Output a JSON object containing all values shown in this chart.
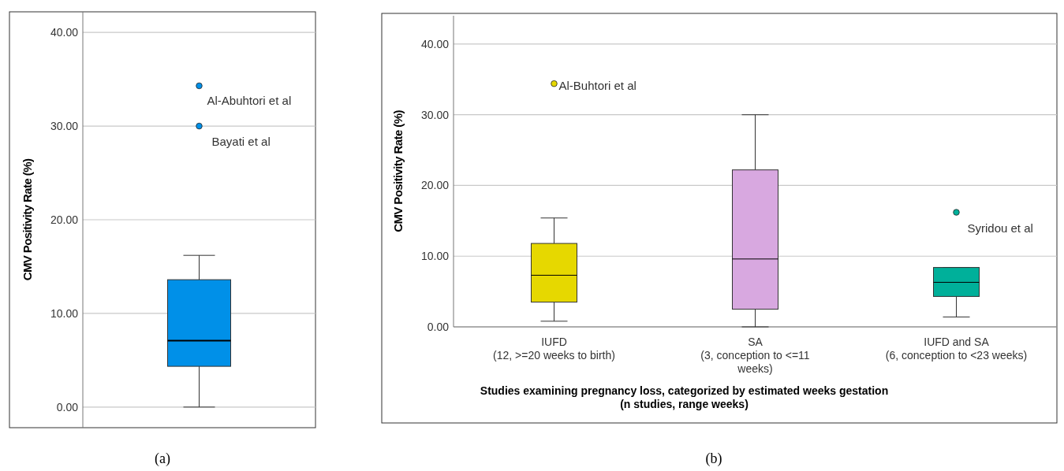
{
  "chart_data": [
    {
      "type": "box",
      "ylabel": "CMV Positivity Rate (%)",
      "categories": [
        null
      ],
      "boxes": [
        {
          "low": 0,
          "q1": 4.35,
          "median": 7.1,
          "q3": 13.6,
          "high": 16.2,
          "outliers": [
            34.3,
            30.0
          ]
        }
      ],
      "colors": [
        "#0090e8"
      ],
      "ylim": [
        -2.2,
        42.2
      ],
      "yticks": [
        {
          "value": 0,
          "label": "0.00"
        },
        {
          "value": 10,
          "label": "10.00"
        },
        {
          "value": 20,
          "label": "20.00"
        },
        {
          "value": 30,
          "label": "30.00"
        },
        {
          "value": 40,
          "label": "40.00"
        }
      ],
      "grid": "y",
      "marker": "circle",
      "annotations": [
        "Al-Abuhtori et al",
        "Bayati et al",
        "(a)"
      ]
    },
    {
      "type": "box",
      "ylabel": "CMV Positivity Rate (%)",
      "xlabel": "Studies examining pregnancy loss, categorized by estimated weeks gestation\n(n studies, range weeks)",
      "categories": [
        "IUFD\n(12, >=20 weeks to birth)",
        "SA\n(3, conception to <=11\nweeks)",
        "IUFD and SA\n(6, conception to <23 weeks)"
      ],
      "boxes": [
        {
          "low": 0.8,
          "q1": 3.5,
          "median": 7.3,
          "q3": 11.8,
          "high": 15.4,
          "outliers": [
            34.4
          ]
        },
        {
          "low": 0,
          "q1": 2.5,
          "median": 9.6,
          "q3": 22.2,
          "high": 30.0
        },
        {
          "low": 1.4,
          "q1": 4.3,
          "median": 6.3,
          "q3": 8.4,
          "high": 8.4,
          "outliers": [
            16.2
          ]
        }
      ],
      "colors": [
        "#e6d800",
        "#d8a8e0",
        "#00b09a"
      ],
      "ylim": [
        0,
        44
      ],
      "yticks": [
        {
          "value": 0,
          "label": "0.00"
        },
        {
          "value": 10,
          "label": "10.00"
        },
        {
          "value": 20,
          "label": "20.00"
        },
        {
          "value": 30,
          "label": "30.00"
        },
        {
          "value": 40,
          "label": "40.00"
        }
      ],
      "grid": "y",
      "marker": "circle",
      "annotations": [
        "Al-Buhtori et al",
        "Syridou et al",
        "(b)"
      ]
    }
  ]
}
